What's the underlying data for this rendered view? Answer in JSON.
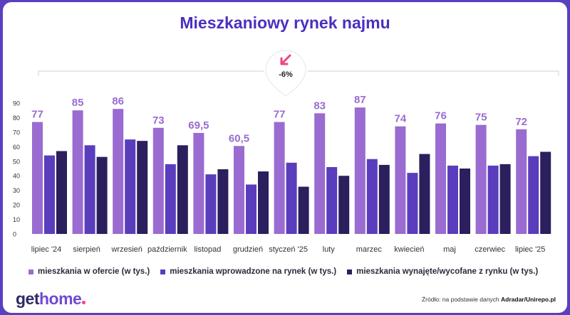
{
  "title": "Mieszkaniowy rynek najmu",
  "colors": {
    "background": "#5a3fbf",
    "title": "#4b2fbf",
    "series_offer": "#9a6bd0",
    "series_introduced": "#5a3dbd",
    "series_rented": "#2b1f5e",
    "value_label": "#9a6bd0",
    "arrow": "#f0437f",
    "brand_dark": "#2f2a66",
    "brand_light": "#6f4ad6"
  },
  "chart_data": {
    "type": "bar",
    "categories": [
      "lipiec '24",
      "sierpień",
      "wrzesień",
      "październik",
      "listopad",
      "grudzień",
      "styczeń '25",
      "luty",
      "marzec",
      "kwiecień",
      "maj",
      "czerwiec",
      "lipiec '25"
    ],
    "series": [
      {
        "name": "mieszkania w ofercie (w tys.)",
        "values": [
          77,
          85,
          86,
          73,
          69.5,
          60.5,
          77,
          83,
          87,
          74,
          76,
          75,
          72
        ]
      },
      {
        "name": "mieszkania wprowadzone na rynek (w tys.)",
        "values": [
          54,
          61,
          65,
          48,
          41,
          34,
          49,
          46,
          51.5,
          42,
          47,
          47,
          53.5
        ]
      },
      {
        "name": "mieszkania wynajęte/wycofane z rynku (w tys.)",
        "values": [
          57,
          53,
          64,
          61,
          44.5,
          43,
          32.5,
          40,
          47.5,
          55,
          45,
          48,
          56.5
        ]
      }
    ],
    "data_labels": [
      "77",
      "85",
      "86",
      "73",
      "69,5",
      "60,5",
      "77",
      "83",
      "87",
      "74",
      "76",
      "75",
      "72"
    ],
    "yticks": [
      "0",
      "10",
      "20",
      "30",
      "40",
      "50",
      "60",
      "70",
      "80",
      "90"
    ],
    "ylim": [
      0,
      90
    ],
    "annotation": "-6%",
    "legend_position": "bottom",
    "grid": false
  },
  "footer": {
    "logo_part1": "get",
    "logo_part2": "home",
    "source_prefix": "Źródło: na podstawie danych ",
    "source_bold": "Adradar/Unirepo.pl"
  }
}
